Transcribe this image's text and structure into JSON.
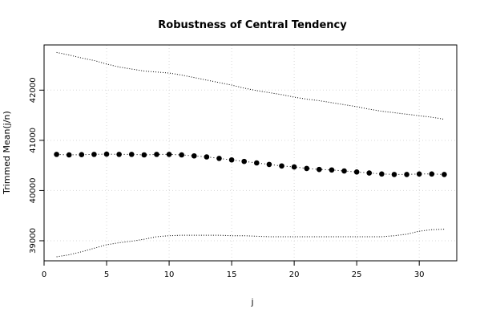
{
  "chart_data": {
    "type": "line",
    "title": "Robustness of Central Tendency",
    "xlabel": "j",
    "ylabel": "Trimmed Mean(j/n)",
    "xlim": [
      0,
      33
    ],
    "ylim": [
      38600,
      42900
    ],
    "xticks": [
      0,
      5,
      10,
      15,
      20,
      25,
      30
    ],
    "yticks": [
      39000,
      40000,
      41000,
      42000
    ],
    "grid": true,
    "x": [
      1,
      2,
      3,
      4,
      5,
      6,
      7,
      8,
      9,
      10,
      11,
      12,
      13,
      14,
      15,
      16,
      17,
      18,
      19,
      20,
      21,
      22,
      23,
      24,
      25,
      26,
      27,
      28,
      29,
      30,
      31,
      32
    ],
    "series": [
      {
        "style": "points-dashed",
        "values": [
          40720,
          40710,
          40715,
          40720,
          40725,
          40720,
          40720,
          40710,
          40720,
          40720,
          40710,
          40690,
          40670,
          40640,
          40610,
          40580,
          40550,
          40520,
          40490,
          40470,
          40440,
          40420,
          40410,
          40390,
          40370,
          40350,
          40330,
          40320,
          40320,
          40330,
          40330,
          40320
        ]
      },
      {
        "style": "dotted",
        "values": [
          42750,
          42700,
          42640,
          42590,
          42520,
          42460,
          42420,
          42380,
          42360,
          42340,
          42300,
          42250,
          42200,
          42150,
          42100,
          42040,
          41990,
          41950,
          41910,
          41860,
          41820,
          41790,
          41750,
          41710,
          41670,
          41620,
          41580,
          41550,
          41520,
          41490,
          41460,
          41420
        ]
      },
      {
        "style": "dotted",
        "values": [
          38680,
          38720,
          38780,
          38850,
          38920,
          38960,
          38990,
          39030,
          39080,
          39100,
          39110,
          39110,
          39110,
          39110,
          39100,
          39100,
          39090,
          39080,
          39080,
          39080,
          39080,
          39080,
          39080,
          39080,
          39080,
          39080,
          39080,
          39100,
          39130,
          39190,
          39220,
          39230
        ]
      }
    ]
  }
}
